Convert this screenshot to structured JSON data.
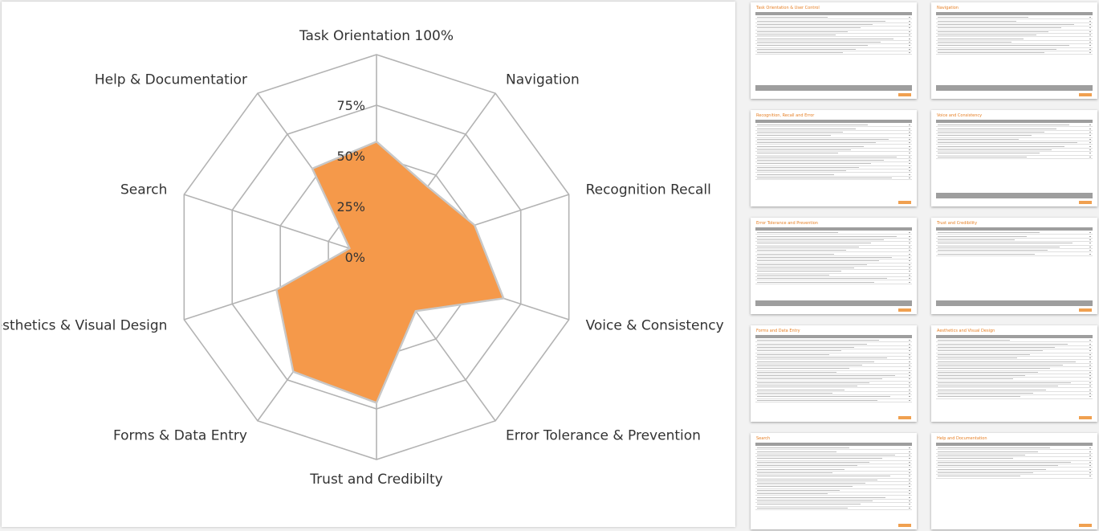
{
  "chart_data": {
    "type": "radar",
    "axes": [
      "Task Orientation 100%",
      "Navigation",
      "Recognition Recall",
      "Voice & Consistency",
      "Error Tolerance & Prevention",
      "Trust and Credibilty",
      "Forms & Data Entry",
      "Aesthetics & Visual Design",
      "Search",
      "Help & Documentatior"
    ],
    "tick_labels": [
      "0%",
      "25%",
      "50%",
      "75%"
    ],
    "rmax": 100,
    "grid_levels": [
      0,
      25,
      50,
      75,
      100
    ],
    "values": [
      57,
      43,
      51,
      66,
      33,
      72,
      70,
      52,
      14,
      54
    ],
    "fill_color": "#f5994a",
    "stroke_color": "#c8c8c8",
    "grid_color": "#b3b3b3"
  },
  "thumbnails": [
    {
      "title": "Task Orientation & User Control",
      "rows": 11,
      "footer": true
    },
    {
      "title": "Navigation",
      "rows": 11,
      "footer": true
    },
    {
      "title": "Recognition, Recall and Error",
      "rows": 16,
      "footer": false
    },
    {
      "title": "Voice and Consistency",
      "rows": 10,
      "footer": true
    },
    {
      "title": "Error Tolerance and Prevention",
      "rows": 15,
      "footer": true
    },
    {
      "title": "Trust and Credibility",
      "rows": 7,
      "footer": true
    },
    {
      "title": "Forms and Data Entry",
      "rows": 18,
      "footer": false
    },
    {
      "title": "Aesthetics and Visual Design",
      "rows": 17,
      "footer": false
    },
    {
      "title": "Search",
      "rows": 18,
      "footer": false
    },
    {
      "title": "Help and Documentation",
      "rows": 9,
      "footer": false
    }
  ]
}
